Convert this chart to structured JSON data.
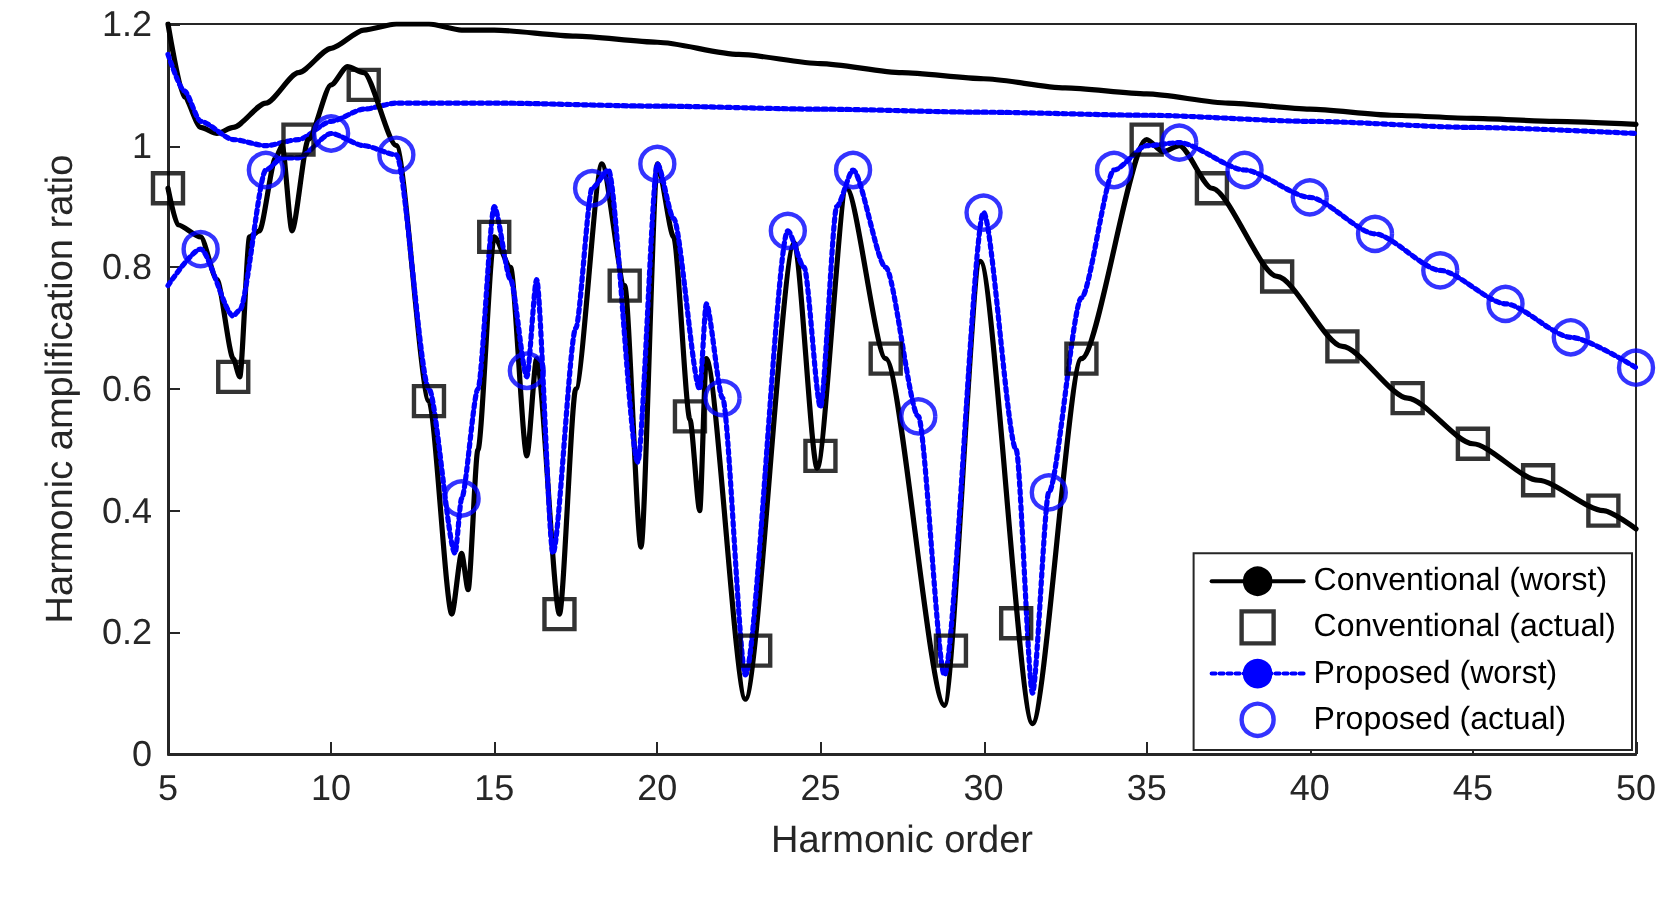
{
  "chart_data": {
    "type": "line",
    "xlabel": "Harmonic order",
    "ylabel": "Harmonic amplification ratio",
    "xlim": [
      5,
      50
    ],
    "xticks": [
      5,
      10,
      15,
      20,
      25,
      30,
      35,
      40,
      45,
      50
    ],
    "ylim": [
      0,
      1.2
    ],
    "yticks": [
      0,
      0.2,
      0.4,
      0.6,
      0.8,
      1,
      1.2
    ],
    "grid": false,
    "legend": "bottom right",
    "series": [
      {
        "name": "Conventional (worst)",
        "color": "#000000",
        "line_style": "solid",
        "marker": "none",
        "x": [
          5,
          5.5,
          6,
          6.5,
          7,
          8,
          9,
          10,
          11,
          12,
          12.5,
          13,
          14,
          15,
          17.5,
          20,
          22.5,
          25,
          27.5,
          30,
          32.5,
          35,
          37.5,
          40,
          42.5,
          45,
          47.5,
          50
        ],
        "values": [
          1.2,
          1.08,
          1.03,
          1.02,
          1.03,
          1.07,
          1.12,
          1.16,
          1.19,
          1.2,
          1.2,
          1.2,
          1.19,
          1.19,
          1.18,
          1.17,
          1.15,
          1.135,
          1.12,
          1.11,
          1.095,
          1.085,
          1.07,
          1.06,
          1.05,
          1.045,
          1.04,
          1.035
        ]
      },
      {
        "name": "Conventional (actual)",
        "type": "scatter",
        "color": "#000000",
        "marker": "square",
        "x": [
          5,
          7,
          9,
          11,
          13,
          15,
          17,
          19,
          21,
          23,
          25,
          27,
          29,
          31,
          33,
          35,
          37,
          39,
          41,
          43,
          45,
          47,
          49
        ],
        "values": [
          0.93,
          0.62,
          1.01,
          1.1,
          0.58,
          0.85,
          0.23,
          0.77,
          0.555,
          0.17,
          0.49,
          0.65,
          0.17,
          0.215,
          0.65,
          1.01,
          0.93,
          0.785,
          0.67,
          0.585,
          0.51,
          0.45,
          0.4
        ]
      },
      {
        "name": "Proposed (worst)",
        "color": "#0000ff",
        "line_style": "dotted",
        "marker": "none",
        "x": [
          5,
          5.5,
          6,
          7,
          8,
          9,
          10,
          11,
          12,
          15,
          20,
          25,
          30,
          35,
          40,
          45,
          50
        ],
        "values": [
          1.15,
          1.09,
          1.04,
          1.01,
          1.0,
          1.01,
          1.04,
          1.06,
          1.07,
          1.07,
          1.065,
          1.06,
          1.055,
          1.05,
          1.04,
          1.03,
          1.02
        ]
      },
      {
        "name": "Proposed (actual)",
        "type": "scatter",
        "color": "#0000ff",
        "marker": "circle",
        "x": [
          6,
          8,
          10,
          12,
          14,
          16,
          18,
          20,
          22,
          24,
          26,
          28,
          30,
          32,
          34,
          36,
          38,
          40,
          42,
          44,
          46,
          48,
          50
        ],
        "values": [
          0.83,
          0.96,
          1.02,
          0.985,
          0.42,
          0.63,
          0.93,
          0.97,
          0.585,
          0.86,
          0.96,
          0.555,
          0.89,
          0.43,
          0.96,
          1.005,
          0.96,
          0.915,
          0.855,
          0.795,
          0.74,
          0.685,
          0.635
        ]
      },
      {
        "color": "#000000",
        "line_style": "solid",
        "marker": "none",
        "x": [
          5,
          5.3,
          6,
          6.5,
          7,
          7.2,
          7.5,
          7.8,
          8.3,
          8.5,
          8.8,
          9.3,
          10,
          10.5,
          11,
          12,
          13,
          13.7,
          14,
          14.2,
          14.5,
          15,
          15.5,
          16,
          16.3,
          17,
          17.5,
          18.3,
          19,
          19.5,
          20,
          20.5,
          21,
          21.3,
          21.5,
          22.7,
          24.2,
          24.9,
          25.8,
          27,
          28.8,
          29.9,
          31.5,
          33,
          35,
          35.5,
          36,
          37,
          39,
          41,
          43,
          45,
          47,
          49,
          50
        ],
        "values": [
          0.93,
          0.87,
          0.85,
          0.78,
          0.65,
          0.62,
          0.85,
          0.86,
          0.98,
          1.0,
          0.86,
          1.01,
          1.1,
          1.13,
          1.12,
          1.0,
          0.58,
          0.23,
          0.33,
          0.27,
          0.5,
          0.85,
          0.8,
          0.49,
          0.65,
          0.23,
          0.6,
          0.97,
          0.77,
          0.34,
          0.97,
          0.85,
          0.55,
          0.4,
          0.65,
          0.09,
          0.84,
          0.47,
          0.93,
          0.65,
          0.08,
          0.81,
          0.05,
          0.65,
          1.01,
          0.99,
          1.0,
          0.93,
          0.785,
          0.67,
          0.585,
          0.51,
          0.45,
          0.4,
          0.37
        ]
      },
      {
        "color": "#0000ff",
        "line_style": "dotted",
        "marker": "none",
        "x": [
          5,
          6,
          7,
          7.2,
          8,
          8.5,
          9,
          10,
          11,
          12,
          13,
          13.8,
          14,
          14.5,
          15,
          15.5,
          16,
          16.3,
          16.8,
          17.5,
          18,
          18.5,
          19.4,
          20,
          20.5,
          21.3,
          21.5,
          22,
          22.7,
          24,
          24.5,
          25,
          25.5,
          26,
          27,
          28,
          28.8,
          30,
          31,
          31.5,
          32,
          33,
          34,
          35,
          36,
          38,
          40,
          42,
          44,
          46,
          48,
          50
        ],
        "values": [
          0.77,
          0.83,
          0.72,
          0.73,
          0.96,
          0.98,
          0.98,
          1.02,
          1.0,
          0.985,
          0.6,
          0.33,
          0.42,
          0.6,
          0.9,
          0.78,
          0.62,
          0.78,
          0.33,
          0.7,
          0.93,
          0.96,
          0.48,
          0.97,
          0.88,
          0.6,
          0.74,
          0.585,
          0.13,
          0.86,
          0.8,
          0.57,
          0.9,
          0.96,
          0.8,
          0.555,
          0.13,
          0.89,
          0.5,
          0.1,
          0.43,
          0.75,
          0.96,
          1.0,
          1.005,
          0.96,
          0.915,
          0.855,
          0.795,
          0.74,
          0.685,
          0.635
        ]
      }
    ]
  }
}
